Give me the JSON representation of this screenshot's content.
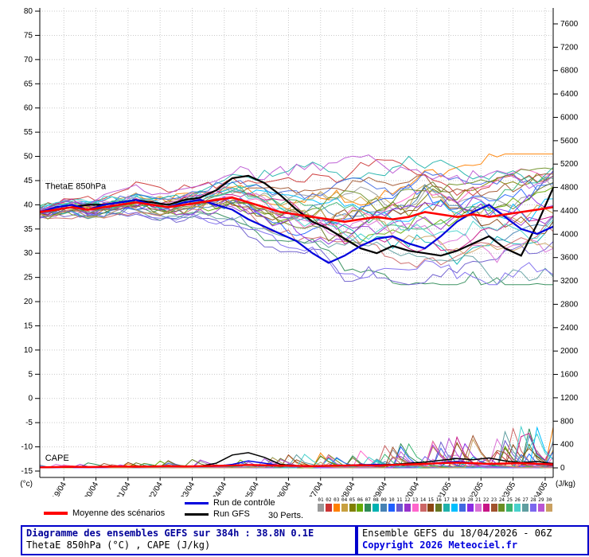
{
  "chart_data": {
    "type": "line",
    "title": "Diagramme des ensembles GEFS sur 384h : 38.8N 0.1E",
    "subtitle": "ThetaE 850hPa (°C) , CAPE (J/kg)",
    "x_hours": [
      0,
      12,
      24,
      36,
      48,
      60,
      72,
      84,
      96,
      108,
      120,
      132,
      144,
      156,
      168,
      180,
      192,
      204,
      216,
      228,
      240,
      252,
      264,
      276,
      288,
      300,
      312,
      324,
      336,
      348,
      360,
      372,
      384
    ],
    "x_tick_labels": [
      "19/04",
      "20/04",
      "21/04",
      "22/04",
      "23/04",
      "24/04",
      "25/04",
      "26/04",
      "27/04",
      "28/04",
      "29/04",
      "30/04",
      "01/05",
      "02/05",
      "03/05",
      "04/05"
    ],
    "axes": {
      "left": {
        "unit": "(°c)",
        "range": [
          -15,
          81
        ],
        "ticks": [
          80,
          75,
          70,
          65,
          60,
          55,
          50,
          45,
          40,
          35,
          30,
          25,
          20,
          15,
          10,
          5,
          0,
          -5,
          -10,
          -15
        ]
      },
      "right": {
        "unit": "(J/kg)",
        "range": [
          0,
          7600
        ],
        "ticks": [
          7600,
          7200,
          6800,
          6400,
          6000,
          5600,
          5200,
          4800,
          4400,
          4000,
          3600,
          3200,
          2800,
          2400,
          2000,
          1600,
          1200,
          800,
          400,
          0
        ]
      }
    },
    "annotations": [
      {
        "text": "ThetaE 850hPa",
        "axis": "left",
        "x_hour": 4,
        "y_value": 43.3
      },
      {
        "text": "CAPE",
        "axis": "right",
        "x_hour": 4,
        "y_value": 120
      }
    ],
    "series": {
      "mean": {
        "name": "Moyenne des scénarios",
        "color": "#ff0000",
        "thetae": [
          38.5,
          39,
          39.5,
          39,
          39.5,
          40,
          40.5,
          40,
          39.5,
          40,
          40.5,
          41,
          41.5,
          40.5,
          39.5,
          38.5,
          38,
          37.5,
          37,
          36.5,
          37,
          37.5,
          37,
          37.5,
          38.5,
          38,
          37.5,
          38,
          37.5,
          38,
          38.5,
          39,
          39.5
        ],
        "cape": [
          10,
          15,
          20,
          15,
          20,
          25,
          20,
          25,
          30,
          25,
          30,
          35,
          40,
          50,
          45,
          40,
          35,
          30,
          35,
          40,
          45,
          40,
          50,
          60,
          70,
          80,
          90,
          80,
          70,
          75,
          80,
          70,
          60
        ]
      },
      "control": {
        "name": "Run de contrôle",
        "color": "#0000dd",
        "thetae": [
          38.5,
          39.5,
          40,
          39,
          40,
          40.5,
          41,
          40,
          39.5,
          40.5,
          41,
          40,
          39,
          37,
          35.5,
          34,
          32.5,
          30,
          28,
          29.5,
          31.5,
          33,
          33.5,
          32,
          31,
          33.5,
          36.5,
          38.5,
          40,
          37.5,
          35,
          34,
          35.5
        ],
        "cape": [
          5,
          10,
          15,
          10,
          15,
          20,
          15,
          20,
          25,
          30,
          25,
          30,
          60,
          120,
          80,
          40,
          30,
          25,
          30,
          40,
          50,
          60,
          45,
          55,
          70,
          90,
          110,
          85,
          60,
          70,
          80,
          65,
          50
        ]
      },
      "gfs": {
        "name": "Run GFS",
        "color": "#000000",
        "thetae": [
          38.5,
          39,
          39.5,
          40,
          40,
          40.5,
          41,
          40.5,
          40,
          41,
          41.5,
          43,
          45.5,
          46,
          44.5,
          42,
          39,
          36.5,
          35,
          33,
          31,
          30,
          31.5,
          30.5,
          30,
          29.5,
          30.5,
          32,
          33.5,
          31,
          29.5,
          36,
          43.5
        ],
        "cape": [
          5,
          10,
          10,
          15,
          15,
          20,
          20,
          25,
          30,
          25,
          30,
          80,
          220,
          260,
          180,
          60,
          40,
          30,
          35,
          45,
          55,
          50,
          60,
          80,
          100,
          130,
          160,
          140,
          170,
          120,
          90,
          110,
          70
        ]
      }
    },
    "members": {
      "count": 30,
      "spread": [
        1.5,
        1.8,
        2,
        2,
        2.2,
        2.4,
        2.5,
        2.5,
        2.5,
        2.6,
        2.8,
        3,
        3.5,
        4,
        4.5,
        5,
        5.5,
        6,
        6.5,
        7,
        7,
        7.2,
        7.4,
        7.5,
        7.6,
        7.7,
        7.8,
        7.9,
        8,
        8,
        8.2,
        8.4,
        8.5
      ],
      "colors": [
        "#999999",
        "#cc3333",
        "#ff8000",
        "#c8a040",
        "#808000",
        "#66aa00",
        "#2e8b57",
        "#00b2b2",
        "#4682b4",
        "#2060ff",
        "#6a5acd",
        "#9932cc",
        "#ff66cc",
        "#cc6666",
        "#8b4513",
        "#667722",
        "#20b2aa",
        "#00bfff",
        "#4169e1",
        "#8a2be2",
        "#da70d6",
        "#c71585",
        "#a0522d",
        "#6b8e23",
        "#3cb371",
        "#48d1cc",
        "#5f9ea0",
        "#7b68ee",
        "#ba55d3",
        "#caa060"
      ]
    },
    "grid": true,
    "legend_position": "bottom"
  },
  "legend": {
    "perts_label": "30 Perts.",
    "member_ids": [
      "01",
      "02",
      "03",
      "04",
      "05",
      "06",
      "07",
      "08",
      "09",
      "10",
      "11",
      "12",
      "13",
      "14",
      "15",
      "16",
      "17",
      "18",
      "19",
      "20",
      "21",
      "22",
      "23",
      "24",
      "25",
      "26",
      "27",
      "28",
      "29",
      "30"
    ]
  },
  "footer": {
    "run_info": "Ensemble GEFS du 18/04/2026 - 06Z",
    "copyright": "Copyright 2026 Meteociel.fr"
  }
}
